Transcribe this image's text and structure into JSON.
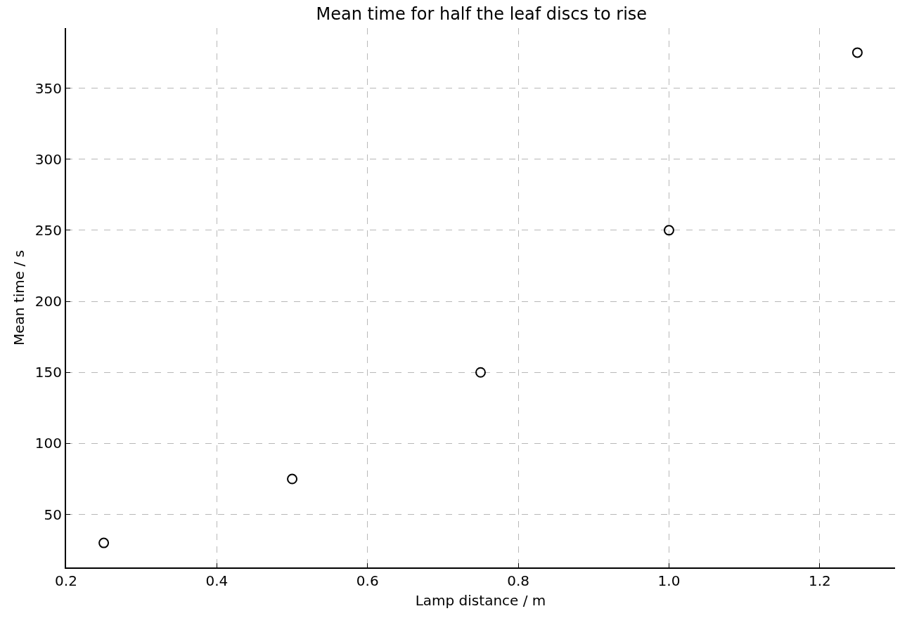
{
  "chart_data": {
    "type": "scatter",
    "title": "Mean time for half the leaf discs to rise",
    "xlabel": "Lamp distance / m",
    "ylabel": "Mean time / s",
    "x": [
      0.25,
      0.5,
      0.75,
      1.0,
      1.25
    ],
    "series": [
      {
        "color": "#000000",
        "values": [
          30,
          75,
          150,
          250,
          375
        ]
      }
    ],
    "xlim": [
      0.2,
      1.3
    ],
    "ylim": [
      12.75,
      392.25
    ],
    "xticks": [
      {
        "value": 0.2,
        "label": "0.2"
      },
      {
        "value": 0.4,
        "label": "0.4"
      },
      {
        "value": 0.6,
        "label": "0.6"
      },
      {
        "value": 0.8,
        "label": "0.8"
      },
      {
        "value": 1.0,
        "label": "1.0"
      },
      {
        "value": 1.2,
        "label": "1.2"
      }
    ],
    "yticks": [
      50,
      100,
      150,
      200,
      250,
      300,
      350
    ],
    "grid": true,
    "marker": "circle"
  }
}
